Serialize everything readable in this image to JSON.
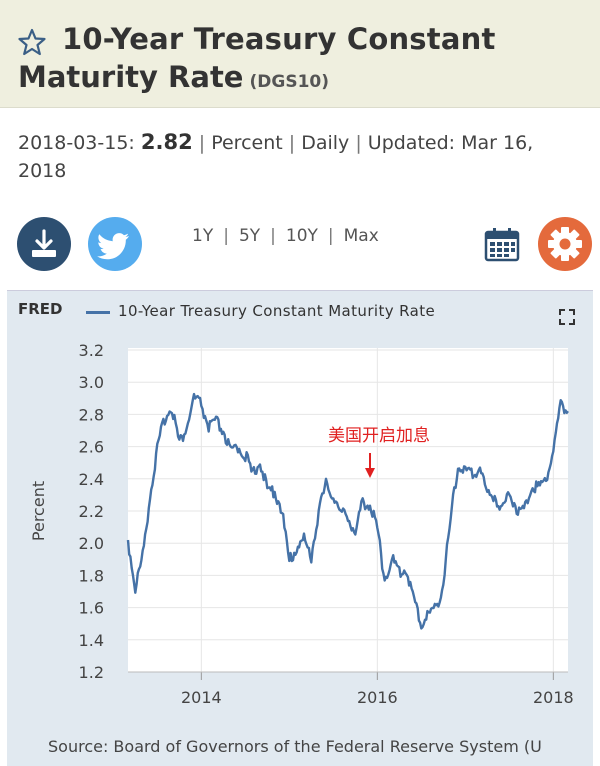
{
  "header": {
    "title_line1": "10-Year Treasury Constant",
    "title_line2": "Maturity Rate",
    "series_code": "(DGS10)",
    "star_icon": "star-outline-icon"
  },
  "info": {
    "date": "2018-03-15:",
    "value": "2.82",
    "units": "Percent",
    "frequency": "Daily",
    "updated_label": "Updated:",
    "updated_line1": "Mar 16,",
    "updated_line2": "2018",
    "separator": "|"
  },
  "toolbar": {
    "download_icon": "download-icon",
    "twitter_icon": "twitter-icon",
    "calendar_icon": "calendar-icon",
    "settings_icon": "gear-icon",
    "ranges": [
      "1Y",
      "5Y",
      "10Y",
      "Max"
    ]
  },
  "chart_header": {
    "logo": "FRED",
    "legend": "10-Year Treasury Constant Maturity Rate"
  },
  "colors": {
    "line": "#4572a7",
    "panel": "#e1e9f0",
    "annotation": "#e02020"
  },
  "source": "Source: Board of Governors of the Federal Reserve System (U",
  "chart_data": {
    "type": "line",
    "title": "",
    "xlabel": "",
    "ylabel": "Percent",
    "xlim": [
      "2013-03",
      "2018-03"
    ],
    "ylim": [
      1.2,
      3.2
    ],
    "yticks": [
      "1.2",
      "1.4",
      "1.6",
      "1.8",
      "2.0",
      "2.2",
      "2.4",
      "2.6",
      "2.8",
      "3.0",
      "3.2"
    ],
    "xticks": [
      "2014",
      "2016",
      "2018"
    ],
    "grid": true,
    "annotation": {
      "text": "美国开启加息",
      "date": "2015-12"
    },
    "series": [
      {
        "name": "10-Year Treasury Constant Maturity Rate",
        "x": [
          "2013-03",
          "2013-04",
          "2013-05",
          "2013-06",
          "2013-07",
          "2013-08",
          "2013-09",
          "2013-10",
          "2013-11",
          "2013-12",
          "2014-01",
          "2014-02",
          "2014-03",
          "2014-04",
          "2014-05",
          "2014-06",
          "2014-07",
          "2014-08",
          "2014-09",
          "2014-10",
          "2014-11",
          "2014-12",
          "2015-01",
          "2015-02",
          "2015-03",
          "2015-04",
          "2015-05",
          "2015-06",
          "2015-07",
          "2015-08",
          "2015-09",
          "2015-10",
          "2015-11",
          "2015-12",
          "2016-01",
          "2016-02",
          "2016-03",
          "2016-04",
          "2016-05",
          "2016-06",
          "2016-07",
          "2016-08",
          "2016-09",
          "2016-10",
          "2016-11",
          "2016-12",
          "2017-01",
          "2017-02",
          "2017-03",
          "2017-04",
          "2017-05",
          "2017-06",
          "2017-07",
          "2017-08",
          "2017-09",
          "2017-10",
          "2017-11",
          "2017-12",
          "2018-01",
          "2018-02",
          "2018-03"
        ],
        "values": [
          2.02,
          1.72,
          1.92,
          2.3,
          2.58,
          2.78,
          2.85,
          2.62,
          2.72,
          2.9,
          2.86,
          2.72,
          2.75,
          2.7,
          2.56,
          2.6,
          2.55,
          2.42,
          2.52,
          2.32,
          2.33,
          2.2,
          1.88,
          1.98,
          2.02,
          1.92,
          2.2,
          2.36,
          2.3,
          2.18,
          2.18,
          2.05,
          2.26,
          2.24,
          2.09,
          1.78,
          1.9,
          1.82,
          1.84,
          1.64,
          1.5,
          1.56,
          1.6,
          1.75,
          2.15,
          2.48,
          2.45,
          2.42,
          2.48,
          2.3,
          2.3,
          2.2,
          2.32,
          2.22,
          2.2,
          2.36,
          2.35,
          2.4,
          2.58,
          2.86,
          2.82
        ]
      }
    ]
  }
}
